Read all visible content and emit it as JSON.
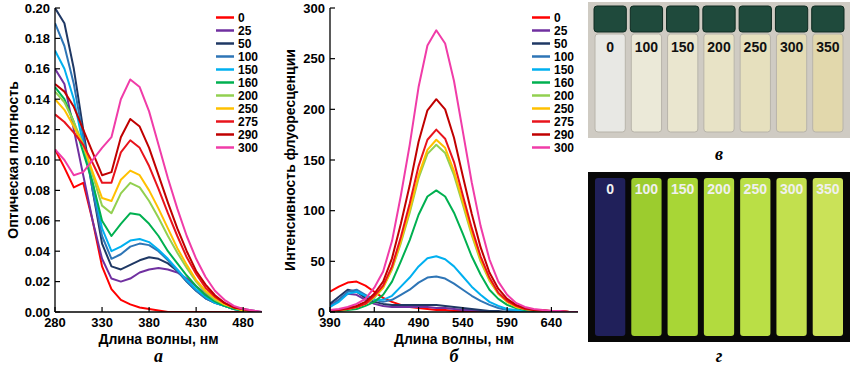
{
  "chart_data": [
    {
      "type": "line",
      "title": "а",
      "x_label": "Длина волны, нм",
      "y_label": "Оптическая плотность",
      "x": [
        280,
        290,
        300,
        310,
        320,
        330,
        340,
        350,
        360,
        370,
        380,
        390,
        400,
        410,
        420,
        430,
        440,
        450,
        460,
        470,
        480,
        490,
        500
      ],
      "xlim": [
        280,
        500
      ],
      "xticks": [
        280,
        330,
        380,
        430,
        480
      ],
      "ylim": [
        0,
        0.2
      ],
      "yticks": [
        {
          "value": 0,
          "label": "0.00"
        },
        {
          "value": 0.02,
          "label": "0.02"
        },
        {
          "value": 0.04,
          "label": "0.04"
        },
        {
          "value": 0.06,
          "label": "0.06"
        },
        {
          "value": 0.08,
          "label": "0.08"
        },
        {
          "value": 0.1,
          "label": "0.10"
        },
        {
          "value": 0.12,
          "label": "0.12"
        },
        {
          "value": 0.14,
          "label": "0.14"
        },
        {
          "value": 0.16,
          "label": "0.16"
        },
        {
          "value": 0.18,
          "label": "0.18"
        },
        {
          "value": 0.2,
          "label": "0.20"
        }
      ],
      "grid": false,
      "legend": "upper right",
      "series": [
        {
          "name": "0",
          "color": "#ff0000",
          "values": [
            0.107,
            0.095,
            0.082,
            0.085,
            0.06,
            0.03,
            0.015,
            0.008,
            0.005,
            0.003,
            0.002,
            0.001,
            0,
            0,
            0,
            0,
            0,
            0,
            0,
            0,
            0,
            0,
            0
          ]
        },
        {
          "name": "25",
          "color": "#7030a0",
          "values": [
            0.16,
            0.15,
            0.12,
            0.09,
            0.06,
            0.035,
            0.022,
            0.02,
            0.022,
            0.026,
            0.028,
            0.029,
            0.028,
            0.026,
            0.022,
            0.017,
            0.012,
            0.008,
            0.005,
            0.003,
            0.002,
            0.001,
            0
          ]
        },
        {
          "name": "50",
          "color": "#1f3864",
          "values": [
            0.2,
            0.19,
            0.16,
            0.12,
            0.08,
            0.045,
            0.03,
            0.028,
            0.031,
            0.034,
            0.036,
            0.035,
            0.032,
            0.027,
            0.02,
            0.014,
            0.009,
            0.006,
            0.004,
            0.002,
            0.001,
            0,
            0
          ]
        },
        {
          "name": "100",
          "color": "#2e75b6",
          "values": [
            0.19,
            0.175,
            0.15,
            0.115,
            0.08,
            0.05,
            0.035,
            0.038,
            0.043,
            0.045,
            0.044,
            0.04,
            0.034,
            0.027,
            0.02,
            0.014,
            0.009,
            0.006,
            0.004,
            0.002,
            0.001,
            0,
            0
          ]
        },
        {
          "name": "150",
          "color": "#00b0f0",
          "values": [
            0.172,
            0.16,
            0.14,
            0.11,
            0.085,
            0.055,
            0.04,
            0.043,
            0.047,
            0.048,
            0.046,
            0.041,
            0.035,
            0.028,
            0.021,
            0.015,
            0.01,
            0.006,
            0.004,
            0.002,
            0.001,
            0,
            0
          ]
        },
        {
          "name": "160",
          "color": "#00b050",
          "values": [
            0.148,
            0.14,
            0.125,
            0.105,
            0.085,
            0.06,
            0.05,
            0.058,
            0.065,
            0.064,
            0.058,
            0.05,
            0.04,
            0.032,
            0.024,
            0.017,
            0.011,
            0.007,
            0.004,
            0.002,
            0.001,
            0,
            0
          ]
        },
        {
          "name": "200",
          "color": "#92d050",
          "values": [
            0.145,
            0.138,
            0.125,
            0.11,
            0.09,
            0.07,
            0.065,
            0.078,
            0.085,
            0.082,
            0.073,
            0.062,
            0.05,
            0.039,
            0.029,
            0.02,
            0.013,
            0.008,
            0.005,
            0.003,
            0.001,
            0,
            0
          ]
        },
        {
          "name": "250",
          "color": "#ffc000",
          "values": [
            0.14,
            0.133,
            0.122,
            0.11,
            0.092,
            0.075,
            0.073,
            0.087,
            0.093,
            0.09,
            0.08,
            0.068,
            0.055,
            0.042,
            0.031,
            0.021,
            0.014,
            0.009,
            0.005,
            0.003,
            0.001,
            0,
            0
          ]
        },
        {
          "name": "275",
          "color": "#e8141c",
          "values": [
            0.13,
            0.125,
            0.118,
            0.11,
            0.098,
            0.085,
            0.085,
            0.105,
            0.113,
            0.108,
            0.096,
            0.081,
            0.065,
            0.05,
            0.036,
            0.025,
            0.016,
            0.01,
            0.006,
            0.003,
            0.002,
            0,
            0
          ]
        },
        {
          "name": "290",
          "color": "#c00000",
          "values": [
            0.15,
            0.145,
            0.135,
            0.12,
            0.105,
            0.09,
            0.092,
            0.115,
            0.127,
            0.122,
            0.108,
            0.09,
            0.072,
            0.055,
            0.04,
            0.027,
            0.018,
            0.011,
            0.006,
            0.003,
            0.002,
            0,
            0
          ]
        },
        {
          "name": "300",
          "color": "#f03ca8",
          "values": [
            0.107,
            0.1,
            0.09,
            0.092,
            0.1,
            0.108,
            0.115,
            0.14,
            0.153,
            0.148,
            0.132,
            0.11,
            0.088,
            0.068,
            0.05,
            0.035,
            0.023,
            0.014,
            0.008,
            0.004,
            0.002,
            0.001,
            0
          ]
        }
      ]
    },
    {
      "type": "line",
      "title": "б",
      "x_label": "Длина волны, нм",
      "y_label": "Интенсивность флуоресценции",
      "x": [
        390,
        400,
        410,
        420,
        430,
        440,
        450,
        460,
        470,
        480,
        490,
        500,
        510,
        520,
        530,
        540,
        550,
        560,
        570,
        580,
        590,
        600,
        610,
        620,
        630,
        640,
        650,
        660,
        670
      ],
      "xlim": [
        390,
        670
      ],
      "xticks": [
        390,
        440,
        490,
        540,
        590,
        640
      ],
      "ylim": [
        0,
        300
      ],
      "yticks": [
        0,
        50,
        100,
        150,
        200,
        250,
        300
      ],
      "grid": false,
      "legend": "upper right",
      "series": [
        {
          "name": "0",
          "color": "#ff0000",
          "values": [
            20,
            25,
            29,
            30,
            26,
            20,
            14,
            10,
            7,
            5,
            4,
            3,
            2,
            2,
            1,
            1,
            0,
            0,
            0,
            0,
            0,
            0,
            0,
            0,
            0,
            0,
            0,
            0,
            0
          ]
        },
        {
          "name": "25",
          "color": "#7030a0",
          "values": [
            6,
            12,
            18,
            17,
            12,
            8,
            6,
            5,
            5,
            5,
            5,
            5,
            4,
            4,
            3,
            2,
            2,
            1,
            1,
            0,
            0,
            0,
            0,
            0,
            0,
            0,
            0,
            0,
            0
          ]
        },
        {
          "name": "50",
          "color": "#1f3864",
          "values": [
            8,
            15,
            22,
            20,
            14,
            10,
            8,
            7,
            7,
            7,
            7,
            7,
            7,
            6,
            5,
            4,
            3,
            2,
            1,
            1,
            0,
            0,
            0,
            0,
            0,
            0,
            0,
            0,
            0
          ]
        },
        {
          "name": "100",
          "color": "#2e75b6",
          "values": [
            5,
            12,
            20,
            22,
            17,
            12,
            10,
            12,
            17,
            22,
            29,
            34,
            35,
            33,
            28,
            22,
            16,
            11,
            7,
            4,
            2,
            1,
            1,
            0,
            0,
            0,
            0,
            0,
            0
          ]
        },
        {
          "name": "150",
          "color": "#00b0f0",
          "values": [
            5,
            10,
            18,
            20,
            16,
            12,
            12,
            16,
            25,
            34,
            45,
            53,
            55,
            52,
            45,
            35,
            25,
            17,
            10,
            6,
            3,
            2,
            1,
            1,
            0,
            0,
            0,
            0,
            0
          ]
        },
        {
          "name": "160",
          "color": "#00b050",
          "values": [
            1,
            1,
            2,
            3,
            6,
            10,
            17,
            30,
            50,
            71,
            96,
            114,
            120,
            114,
            98,
            77,
            55,
            37,
            22,
            13,
            7,
            4,
            2,
            1,
            1,
            0,
            0,
            0,
            0
          ]
        },
        {
          "name": "200",
          "color": "#92d050",
          "values": [
            1,
            2,
            3,
            5,
            8,
            14,
            24,
            42,
            68,
            98,
            132,
            156,
            165,
            157,
            135,
            106,
            76,
            50,
            31,
            18,
            10,
            5,
            3,
            2,
            1,
            1,
            1,
            0,
            0
          ]
        },
        {
          "name": "250",
          "color": "#ffc000",
          "values": [
            1,
            2,
            3,
            5,
            8,
            15,
            24,
            43,
            70,
            101,
            135,
            160,
            170,
            162,
            139,
            109,
            78,
            52,
            32,
            18,
            10,
            5,
            3,
            2,
            1,
            1,
            1,
            0,
            0
          ]
        },
        {
          "name": "275",
          "color": "#e8141c",
          "values": [
            1,
            2,
            3,
            5,
            8,
            16,
            26,
            45,
            74,
            107,
            144,
            170,
            180,
            171,
            148,
            115,
            83,
            55,
            34,
            19,
            11,
            6,
            3,
            2,
            1,
            1,
            1,
            0,
            0
          ]
        },
        {
          "name": "290",
          "color": "#c00000",
          "values": [
            2,
            2,
            4,
            6,
            10,
            18,
            30,
            53,
            87,
            125,
            168,
            199,
            210,
            200,
            172,
            134,
            97,
            64,
            39,
            23,
            13,
            7,
            4,
            2,
            2,
            1,
            1,
            0,
            0
          ]
        },
        {
          "name": "300",
          "color": "#f03ca8",
          "values": [
            2,
            3,
            5,
            8,
            13,
            24,
            40,
            70,
            115,
            165,
            222,
            263,
            278,
            265,
            228,
            178,
            128,
            85,
            52,
            30,
            17,
            9,
            5,
            3,
            2,
            1,
            1,
            0,
            0
          ]
        }
      ]
    }
  ],
  "photos": [
    {
      "title": "в",
      "labels": [
        "0",
        "100",
        "150",
        "200",
        "250",
        "300",
        "350"
      ],
      "colors": [
        "#e8e8e4",
        "#ebe9d8",
        "#eae6cf",
        "#e8e3c6",
        "#e6e0be",
        "#e4dcb5",
        "#e2d8ac"
      ]
    },
    {
      "title": "г",
      "labels": [
        "0",
        "100",
        "150",
        "200",
        "250",
        "300",
        "350"
      ],
      "colors": [
        "#20205a",
        "#9ccc2e",
        "#a8d636",
        "#b2db3e",
        "#badf46",
        "#c2e04e",
        "#cae258"
      ]
    }
  ]
}
